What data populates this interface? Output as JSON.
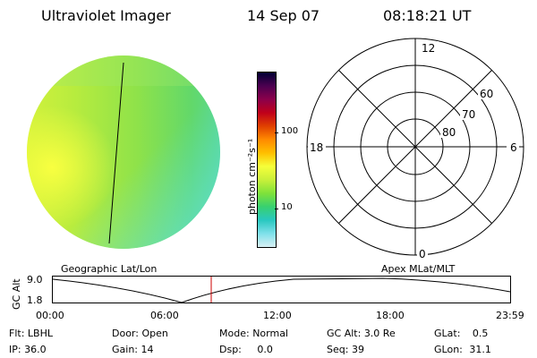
{
  "header": {
    "instrument": "Ultraviolet Imager",
    "date": "14 Sep 07",
    "time": "08:18:21 UT"
  },
  "colorbar": {
    "unit_label": "photon cm⁻²s⁻¹",
    "ticks": [
      "100",
      "10"
    ],
    "colors": [
      "#000033",
      "#4b0050",
      "#8b004b",
      "#c0001a",
      "#e04000",
      "#ff8a00",
      "#ffc000",
      "#f5ff3a",
      "#c8f03a",
      "#7fe23a",
      "#38d070",
      "#29c8c0",
      "#7fe0ea",
      "#d8f0f4"
    ]
  },
  "polar_plot": {
    "mlt_labels": [
      "12",
      "6",
      "18",
      "0"
    ],
    "lat_labels": [
      "60",
      "70",
      "80"
    ]
  },
  "timeline": {
    "left_title": "Geographic Lat/Lon",
    "right_title": "Apex MLat/MLT",
    "y_axis_title": "GC Alt",
    "y_ticks": [
      "9.0",
      "1.8"
    ],
    "x_ticks": [
      "00:00",
      "06:00",
      "12:00",
      "18:00",
      "23:59"
    ],
    "marker_color": "#cc0000"
  },
  "status": {
    "row1": [
      {
        "label": "Flt:",
        "value": "LBHL"
      },
      {
        "label": "Door:",
        "value": "Open"
      },
      {
        "label": "Mode:",
        "value": "Normal"
      },
      {
        "label": "GC Alt:",
        "value": "3.0 Re"
      },
      {
        "label": "GLat:",
        "value": "0.5"
      }
    ],
    "row2": [
      {
        "label": "IP:",
        "value": "36.0"
      },
      {
        "label": "Gain:",
        "value": "14"
      },
      {
        "label": "Dsp:",
        "value": "0.0"
      },
      {
        "label": "Seq:",
        "value": "39"
      },
      {
        "label": "GLon:",
        "value": "31.1"
      }
    ]
  }
}
